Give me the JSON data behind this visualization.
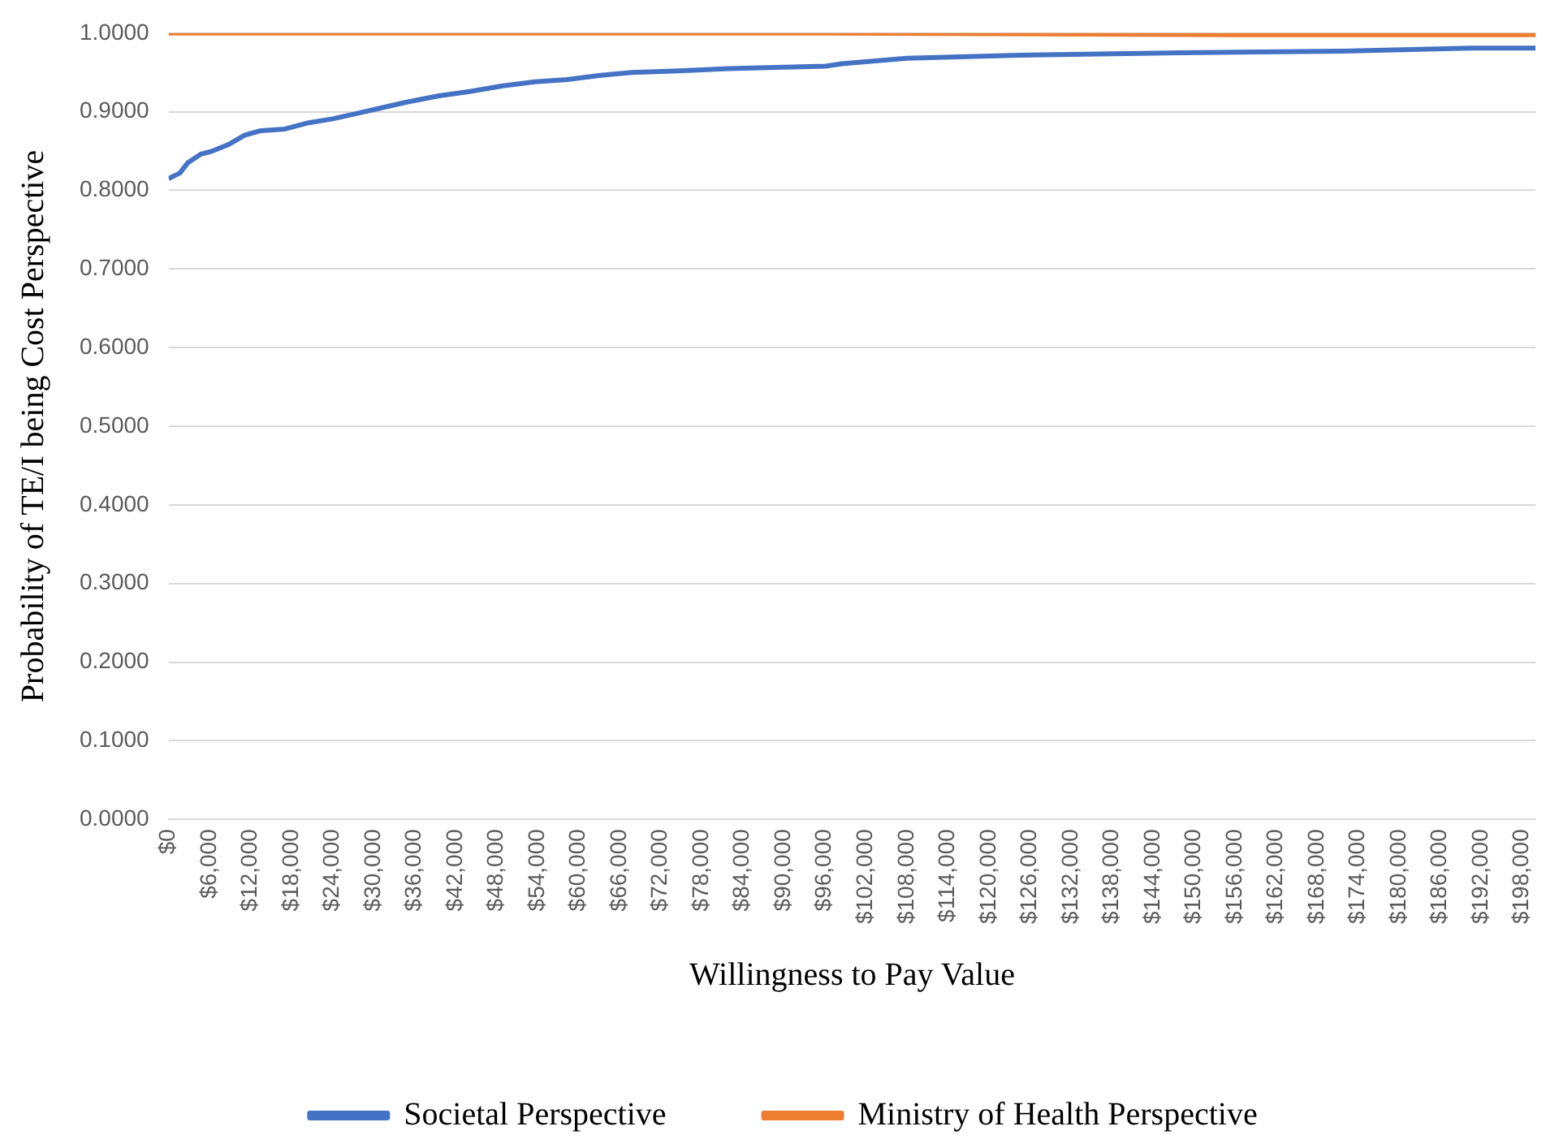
{
  "chart_data": {
    "type": "line",
    "xlabel": "Willingness to Pay Value",
    "ylabel": "Probability of TE/I being Cost Perspective",
    "xlim": [
      0,
      200000
    ],
    "xticks": [
      {
        "value": 0,
        "label": "$0"
      },
      {
        "value": 6000,
        "label": "$6,000"
      },
      {
        "value": 12000,
        "label": "$12,000"
      },
      {
        "value": 18000,
        "label": "$18,000"
      },
      {
        "value": 24000,
        "label": "$24,000"
      },
      {
        "value": 30000,
        "label": "$30,000"
      },
      {
        "value": 36000,
        "label": "$36,000"
      },
      {
        "value": 42000,
        "label": "$42,000"
      },
      {
        "value": 48000,
        "label": "$48,000"
      },
      {
        "value": 54000,
        "label": "$54,000"
      },
      {
        "value": 60000,
        "label": "$60,000"
      },
      {
        "value": 66000,
        "label": "$66,000"
      },
      {
        "value": 72000,
        "label": "$72,000"
      },
      {
        "value": 78000,
        "label": "$78,000"
      },
      {
        "value": 84000,
        "label": "$84,000"
      },
      {
        "value": 90000,
        "label": "$90,000"
      },
      {
        "value": 96000,
        "label": "$96,000"
      },
      {
        "value": 102000,
        "label": "$102,000"
      },
      {
        "value": 108000,
        "label": "$108,000"
      },
      {
        "value": 114000,
        "label": "$114,000"
      },
      {
        "value": 120000,
        "label": "$120,000"
      },
      {
        "value": 126000,
        "label": "$126,000"
      },
      {
        "value": 132000,
        "label": "$132,000"
      },
      {
        "value": 138000,
        "label": "$138,000"
      },
      {
        "value": 144000,
        "label": "$144,000"
      },
      {
        "value": 150000,
        "label": "$150,000"
      },
      {
        "value": 156000,
        "label": "$156,000"
      },
      {
        "value": 162000,
        "label": "$162,000"
      },
      {
        "value": 168000,
        "label": "$168,000"
      },
      {
        "value": 174000,
        "label": "$174,000"
      },
      {
        "value": 180000,
        "label": "$180,000"
      },
      {
        "value": 186000,
        "label": "$186,000"
      },
      {
        "value": 192000,
        "label": "$192,000"
      },
      {
        "value": 198000,
        "label": "$198,000"
      }
    ],
    "ylim": [
      0,
      1
    ],
    "yticks": [
      {
        "value": 0,
        "label": "0.0000"
      },
      {
        "value": 0.1,
        "label": "0.1000"
      },
      {
        "value": 0.2,
        "label": "0.2000"
      },
      {
        "value": 0.3,
        "label": "0.3000"
      },
      {
        "value": 0.4,
        "label": "0.4000"
      },
      {
        "value": 0.5,
        "label": "0.5000"
      },
      {
        "value": 0.6,
        "label": "0.6000"
      },
      {
        "value": 0.7,
        "label": "0.7000"
      },
      {
        "value": 0.8,
        "label": "0.8000"
      },
      {
        "value": 0.9,
        "label": "0.9000"
      },
      {
        "value": 1,
        "label": "1.0000"
      }
    ],
    "grid": "y",
    "legend": "bottom",
    "marker": "none",
    "series": [
      {
        "name": "Societal Perspective",
        "color": "#4472c4",
        "x": [
          0,
          1650,
          2800,
          4700,
          6400,
          8700,
          11100,
          13500,
          17000,
          20500,
          24000,
          27600,
          31200,
          34700,
          39400,
          44200,
          48900,
          53600,
          58300,
          63000,
          67800,
          74800,
          81900,
          91300,
          96100,
          98500,
          108000,
          124500,
          148000,
          171700,
          190600,
          200000
        ],
        "values": [
          0.815,
          0.822,
          0.835,
          0.846,
          0.85,
          0.858,
          0.87,
          0.876,
          0.878,
          0.886,
          0.891,
          0.898,
          0.905,
          0.912,
          0.92,
          0.926,
          0.933,
          0.938,
          0.941,
          0.946,
          0.95,
          0.952,
          0.955,
          0.957,
          0.958,
          0.961,
          0.968,
          0.972,
          0.975,
          0.977,
          0.981,
          0.981
        ]
      },
      {
        "name": "Ministry of Health Perspective",
        "color": "#ed7d31",
        "x": [
          0,
          96000,
          155000,
          200000
        ],
        "values": [
          1,
          1,
          0.998,
          0.998
        ]
      }
    ]
  }
}
